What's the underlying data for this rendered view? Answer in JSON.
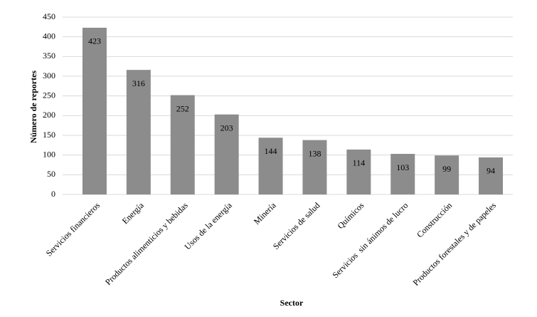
{
  "chart_data": {
    "type": "bar",
    "categories": [
      "Servicios financieros",
      "Energía",
      "Productos alimenticios y bebidas",
      "Usos de la energía",
      "Minería",
      "Servicios de salud",
      "Químicos",
      "Servicios  sin ánimos de lucro",
      "Construcción",
      "Productos forestales y de papeles"
    ],
    "values": [
      423,
      316,
      252,
      203,
      144,
      138,
      114,
      103,
      99,
      94
    ],
    "color": "#8c8c8c",
    "x_label": "Sector",
    "y_label": "Número de reportes",
    "ylim": [
      0,
      450
    ],
    "yticks": [
      0,
      50,
      100,
      150,
      200,
      250,
      300,
      350,
      400,
      450
    ],
    "grid": true
  }
}
